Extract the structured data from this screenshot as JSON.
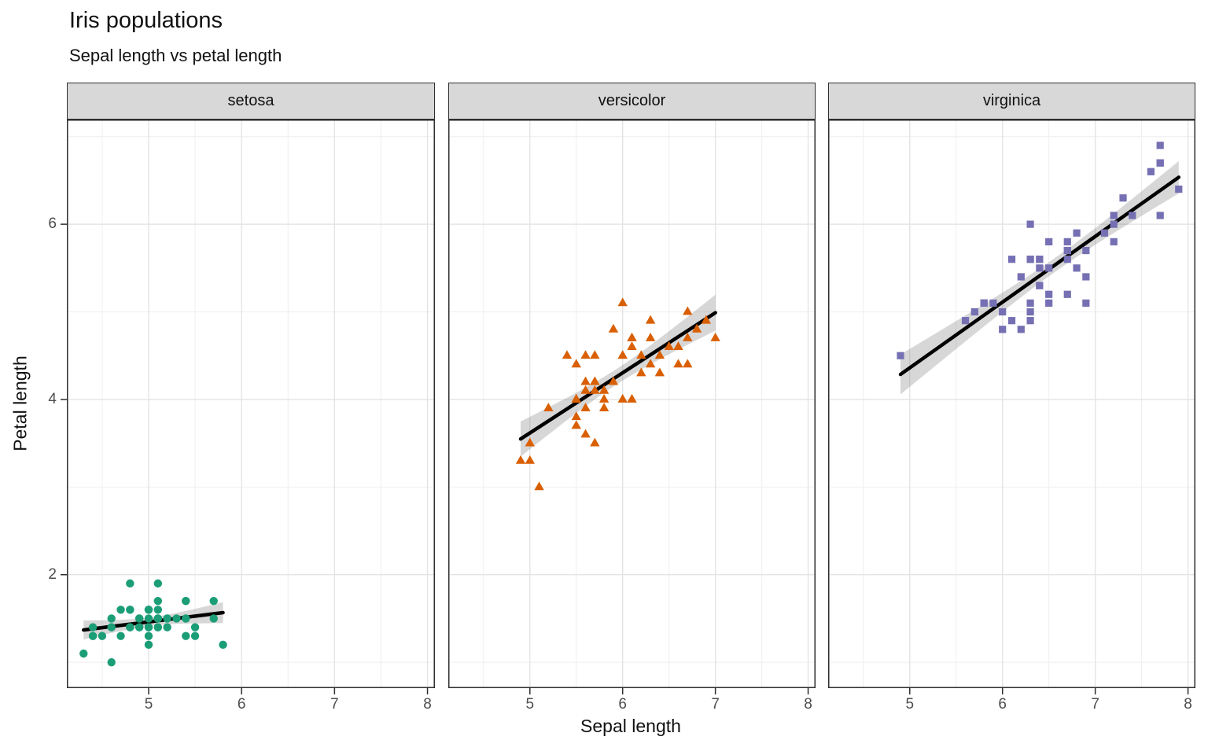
{
  "title": "Iris populations",
  "subtitle": "Sepal length vs petal length",
  "chart_data": {
    "type": "scatter",
    "title": "Iris populations",
    "subtitle": "Sepal length vs petal length",
    "xlabel": "Sepal length",
    "ylabel": "Petal length",
    "xlim": [
      4.12,
      8.08
    ],
    "ylim": [
      0.705,
      7.195
    ],
    "x_major_ticks": [
      5,
      6,
      7,
      8
    ],
    "y_major_ticks": [
      2,
      4,
      6
    ],
    "x_minor_ticks": [
      4.5,
      5.5,
      6.5,
      7.5
    ],
    "y_minor_ticks": [
      1,
      3,
      5,
      7
    ],
    "grid": "on",
    "legend": "none",
    "smooth": {
      "method": "lm",
      "se": true,
      "line_color": "#000000",
      "band_color": "rgba(110,110,110,0.28)"
    },
    "facets": [
      {
        "label": "setosa",
        "color": "#1b9e77",
        "shape": "circle",
        "points": [
          [
            5.1,
            1.4
          ],
          [
            4.9,
            1.4
          ],
          [
            4.7,
            1.3
          ],
          [
            4.6,
            1.5
          ],
          [
            5.0,
            1.4
          ],
          [
            5.4,
            1.7
          ],
          [
            4.6,
            1.4
          ],
          [
            5.0,
            1.5
          ],
          [
            4.4,
            1.4
          ],
          [
            4.9,
            1.5
          ],
          [
            5.4,
            1.5
          ],
          [
            4.8,
            1.6
          ],
          [
            4.8,
            1.4
          ],
          [
            4.3,
            1.1
          ],
          [
            5.8,
            1.2
          ],
          [
            5.7,
            1.5
          ],
          [
            5.4,
            1.3
          ],
          [
            5.1,
            1.4
          ],
          [
            5.7,
            1.7
          ],
          [
            5.1,
            1.5
          ],
          [
            5.4,
            1.7
          ],
          [
            5.1,
            1.5
          ],
          [
            4.6,
            1.0
          ],
          [
            5.1,
            1.7
          ],
          [
            4.8,
            1.9
          ],
          [
            5.0,
            1.6
          ],
          [
            5.0,
            1.6
          ],
          [
            5.2,
            1.5
          ],
          [
            5.2,
            1.4
          ],
          [
            4.7,
            1.6
          ],
          [
            4.8,
            1.6
          ],
          [
            5.4,
            1.5
          ],
          [
            5.2,
            1.5
          ],
          [
            5.5,
            1.4
          ],
          [
            4.9,
            1.5
          ],
          [
            5.0,
            1.2
          ],
          [
            5.5,
            1.3
          ],
          [
            4.9,
            1.4
          ],
          [
            4.4,
            1.3
          ],
          [
            5.1,
            1.5
          ],
          [
            5.0,
            1.3
          ],
          [
            4.5,
            1.3
          ],
          [
            4.4,
            1.3
          ],
          [
            5.0,
            1.6
          ],
          [
            5.1,
            1.9
          ],
          [
            4.8,
            1.4
          ],
          [
            5.1,
            1.6
          ],
          [
            4.6,
            1.4
          ],
          [
            5.3,
            1.5
          ],
          [
            5.0,
            1.4
          ]
        ]
      },
      {
        "label": "versicolor",
        "color": "#d95f02",
        "shape": "triangle",
        "points": [
          [
            7.0,
            4.7
          ],
          [
            6.4,
            4.5
          ],
          [
            6.9,
            4.9
          ],
          [
            5.5,
            4.0
          ],
          [
            6.5,
            4.6
          ],
          [
            5.7,
            4.5
          ],
          [
            6.3,
            4.7
          ],
          [
            4.9,
            3.3
          ],
          [
            6.6,
            4.6
          ],
          [
            5.2,
            3.9
          ],
          [
            5.0,
            3.5
          ],
          [
            5.9,
            4.2
          ],
          [
            6.0,
            4.0
          ],
          [
            6.1,
            4.7
          ],
          [
            5.6,
            3.6
          ],
          [
            6.7,
            4.4
          ],
          [
            5.6,
            4.5
          ],
          [
            5.8,
            4.1
          ],
          [
            6.2,
            4.5
          ],
          [
            5.6,
            3.9
          ],
          [
            5.9,
            4.8
          ],
          [
            6.1,
            4.0
          ],
          [
            6.3,
            4.9
          ],
          [
            6.1,
            4.7
          ],
          [
            6.4,
            4.3
          ],
          [
            6.6,
            4.4
          ],
          [
            6.8,
            4.8
          ],
          [
            6.7,
            5.0
          ],
          [
            6.0,
            4.5
          ],
          [
            5.7,
            3.5
          ],
          [
            5.5,
            3.8
          ],
          [
            5.5,
            3.7
          ],
          [
            5.8,
            3.9
          ],
          [
            6.0,
            5.1
          ],
          [
            5.4,
            4.5
          ],
          [
            6.0,
            4.5
          ],
          [
            6.7,
            4.7
          ],
          [
            6.3,
            4.4
          ],
          [
            5.6,
            4.1
          ],
          [
            5.5,
            4.0
          ],
          [
            5.5,
            4.4
          ],
          [
            6.1,
            4.6
          ],
          [
            5.8,
            4.0
          ],
          [
            5.0,
            3.3
          ],
          [
            5.6,
            4.2
          ],
          [
            5.7,
            4.2
          ],
          [
            5.7,
            4.2
          ],
          [
            6.2,
            4.3
          ],
          [
            5.1,
            3.0
          ],
          [
            5.7,
            4.1
          ]
        ]
      },
      {
        "label": "virginica",
        "color": "#7570b3",
        "shape": "square",
        "points": [
          [
            6.3,
            6.0
          ],
          [
            5.8,
            5.1
          ],
          [
            7.1,
            5.9
          ],
          [
            6.3,
            5.6
          ],
          [
            6.5,
            5.8
          ],
          [
            7.6,
            6.6
          ],
          [
            4.9,
            4.5
          ],
          [
            7.3,
            6.3
          ],
          [
            6.7,
            5.8
          ],
          [
            7.2,
            6.1
          ],
          [
            6.5,
            5.1
          ],
          [
            6.4,
            5.3
          ],
          [
            6.8,
            5.5
          ],
          [
            5.7,
            5.0
          ],
          [
            5.8,
            5.1
          ],
          [
            6.4,
            5.3
          ],
          [
            6.5,
            5.5
          ],
          [
            7.7,
            6.7
          ],
          [
            7.7,
            6.9
          ],
          [
            6.0,
            5.0
          ],
          [
            6.9,
            5.7
          ],
          [
            5.6,
            4.9
          ],
          [
            7.7,
            6.7
          ],
          [
            6.3,
            4.9
          ],
          [
            6.7,
            5.7
          ],
          [
            7.2,
            6.0
          ],
          [
            6.2,
            4.8
          ],
          [
            6.1,
            4.9
          ],
          [
            6.4,
            5.6
          ],
          [
            7.2,
            5.8
          ],
          [
            7.4,
            6.1
          ],
          [
            7.9,
            6.4
          ],
          [
            6.4,
            5.6
          ],
          [
            6.3,
            5.1
          ],
          [
            6.1,
            5.6
          ],
          [
            7.7,
            6.1
          ],
          [
            6.3,
            5.6
          ],
          [
            6.4,
            5.5
          ],
          [
            6.0,
            4.8
          ],
          [
            6.9,
            5.4
          ],
          [
            6.7,
            5.6
          ],
          [
            6.9,
            5.1
          ],
          [
            5.8,
            5.1
          ],
          [
            6.8,
            5.9
          ],
          [
            6.7,
            5.7
          ],
          [
            6.7,
            5.2
          ],
          [
            6.3,
            5.0
          ],
          [
            6.5,
            5.2
          ],
          [
            6.2,
            5.4
          ],
          [
            5.9,
            5.1
          ]
        ]
      }
    ]
  }
}
